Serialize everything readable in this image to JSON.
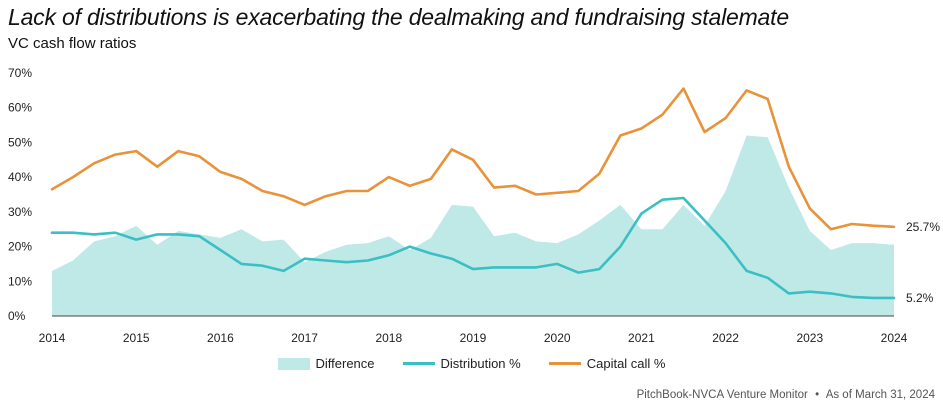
{
  "header": {
    "title": "Lack of distributions is exacerbating the dealmaking and fundraising stalemate",
    "subtitle": "VC cash flow ratios"
  },
  "chart_data": {
    "type": "line",
    "title": "Lack of distributions is exacerbating the dealmaking and fundraising stalemate",
    "subtitle": "VC cash flow ratios",
    "xlabel": "",
    "ylabel": "",
    "x_ticks": [
      "2014",
      "2015",
      "2016",
      "2017",
      "2018",
      "2019",
      "2020",
      "2021",
      "2022",
      "2023",
      "2024"
    ],
    "y_ticks": [
      "0%",
      "10%",
      "20%",
      "30%",
      "40%",
      "50%",
      "60%",
      "70%"
    ],
    "ylim": [
      0,
      70
    ],
    "xlim": [
      2014,
      2024
    ],
    "grid": false,
    "legend_position": "bottom",
    "x": [
      2014,
      2014.25,
      2014.5,
      2014.75,
      2015,
      2015.25,
      2015.5,
      2015.75,
      2016,
      2016.25,
      2016.5,
      2016.75,
      2017,
      2017.25,
      2017.5,
      2017.75,
      2018,
      2018.25,
      2018.5,
      2018.75,
      2019,
      2019.25,
      2019.5,
      2019.75,
      2020,
      2020.25,
      2020.5,
      2020.75,
      2021,
      2021.25,
      2021.5,
      2021.75,
      2022,
      2022.25,
      2022.5,
      2022.75,
      2023,
      2023.25,
      2023.5,
      2023.75,
      2024
    ],
    "series": [
      {
        "name": "Difference",
        "kind": "area",
        "color": "#bfe9e7",
        "values": [
          13.0,
          16.0,
          21.5,
          23.0,
          26.0,
          20.5,
          24.5,
          23.5,
          22.5,
          25.0,
          21.5,
          22.0,
          15.5,
          18.5,
          20.5,
          21.0,
          23.0,
          19.0,
          22.5,
          32.0,
          31.5,
          23.0,
          24.0,
          21.5,
          21.0,
          23.5,
          27.5,
          32.0,
          25.0,
          25.0,
          32.0,
          26.0,
          36.0,
          52.0,
          51.5,
          37.0,
          24.5,
          19.0,
          21.0,
          21.0,
          20.5
        ]
      },
      {
        "name": "Distribution %",
        "kind": "line",
        "color": "#3bbfc3",
        "values": [
          24.0,
          24.0,
          23.5,
          24.0,
          22.0,
          23.5,
          23.5,
          23.0,
          19.0,
          15.0,
          14.5,
          13.0,
          16.5,
          16.0,
          15.5,
          16.0,
          17.5,
          20.0,
          18.0,
          16.5,
          13.5,
          14.0,
          14.0,
          14.0,
          15.0,
          12.5,
          13.5,
          20.0,
          29.5,
          33.5,
          34.0,
          27.5,
          21.0,
          13.0,
          11.0,
          6.5,
          7.0,
          6.5,
          5.5,
          5.2,
          5.2
        ],
        "end_label": "5.2%"
      },
      {
        "name": "Capital call %",
        "kind": "line",
        "color": "#e8923a",
        "values": [
          36.5,
          40.0,
          44.0,
          46.5,
          47.5,
          43.0,
          47.5,
          46.0,
          41.5,
          39.5,
          36.0,
          34.5,
          32.0,
          34.5,
          36.0,
          36.0,
          40.0,
          37.5,
          39.5,
          48.0,
          45.0,
          37.0,
          37.5,
          35.0,
          35.5,
          36.0,
          41.0,
          52.0,
          54.0,
          58.0,
          65.5,
          53.0,
          57.0,
          65.0,
          62.5,
          43.0,
          31.0,
          25.0,
          26.5,
          26.0,
          25.7
        ],
        "end_label": "25.7%"
      }
    ]
  },
  "footer": {
    "source": "PitchBook-NVCA Venture Monitor",
    "separator": "•",
    "as_of": "As of March 31, 2024"
  }
}
